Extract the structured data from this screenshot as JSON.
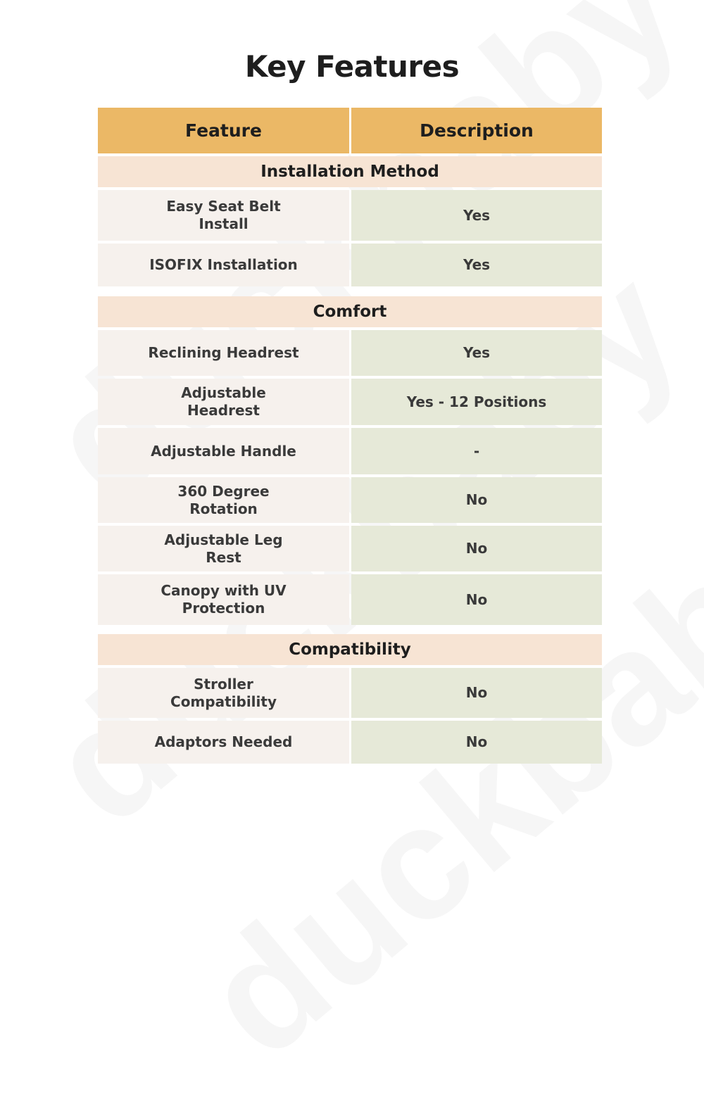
{
  "watermark": "duckbaby",
  "title": "Key Features",
  "header": {
    "feature": "Feature",
    "description": "Description"
  },
  "sections": [
    {
      "name": "Installation Method",
      "rows": [
        {
          "feature": "Easy Seat Belt Install",
          "description": "Yes"
        },
        {
          "feature": "ISOFIX Installation",
          "description": "Yes"
        }
      ]
    },
    {
      "name": "Comfort",
      "rows": [
        {
          "feature": "Reclining Headrest",
          "description": "Yes"
        },
        {
          "feature": "Adjustable Headrest",
          "description": "Yes - 12 Positions"
        },
        {
          "feature": "Adjustable Handle",
          "description": "-"
        },
        {
          "feature": "360 Degree Rotation",
          "description": "No"
        },
        {
          "feature": "Adjustable Leg Rest",
          "description": "No"
        },
        {
          "feature": "Canopy with UV Protection",
          "description": "No"
        }
      ]
    },
    {
      "name": "Compatibility",
      "rows": [
        {
          "feature": "Stroller Compatibility",
          "description": "No"
        },
        {
          "feature": "Adaptors Needed",
          "description": "No"
        }
      ]
    }
  ],
  "colors": {
    "header": "#ebb866",
    "section": "#f7e4d4",
    "feature_cell": "#f6f1ed",
    "description_cell": "#e6e9d8"
  }
}
